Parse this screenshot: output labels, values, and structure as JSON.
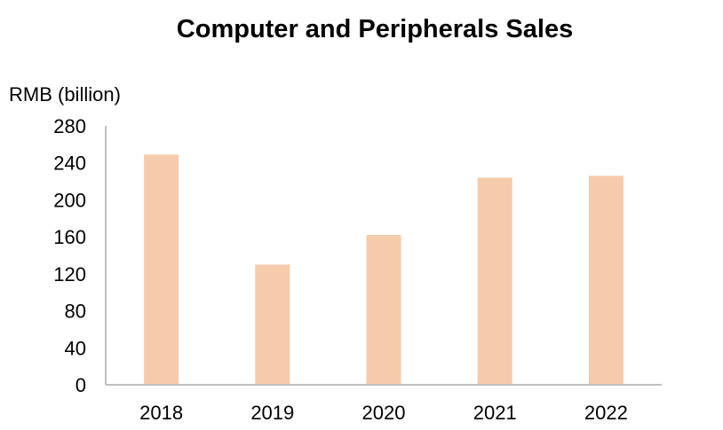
{
  "chart_data": {
    "type": "bar",
    "title": "Computer and Peripherals Sales",
    "ylabel": "RMB (billion)",
    "xlabel": "",
    "categories": [
      "2018",
      "2019",
      "2020",
      "2021",
      "2022"
    ],
    "values": [
      249,
      130,
      162,
      224,
      226
    ],
    "ylim": [
      0,
      280
    ],
    "yticks": [
      0,
      40,
      80,
      120,
      160,
      200,
      240,
      280
    ],
    "grid": false,
    "bar_color": "#F5CBAB",
    "axis_color": "#BFBFBF"
  }
}
